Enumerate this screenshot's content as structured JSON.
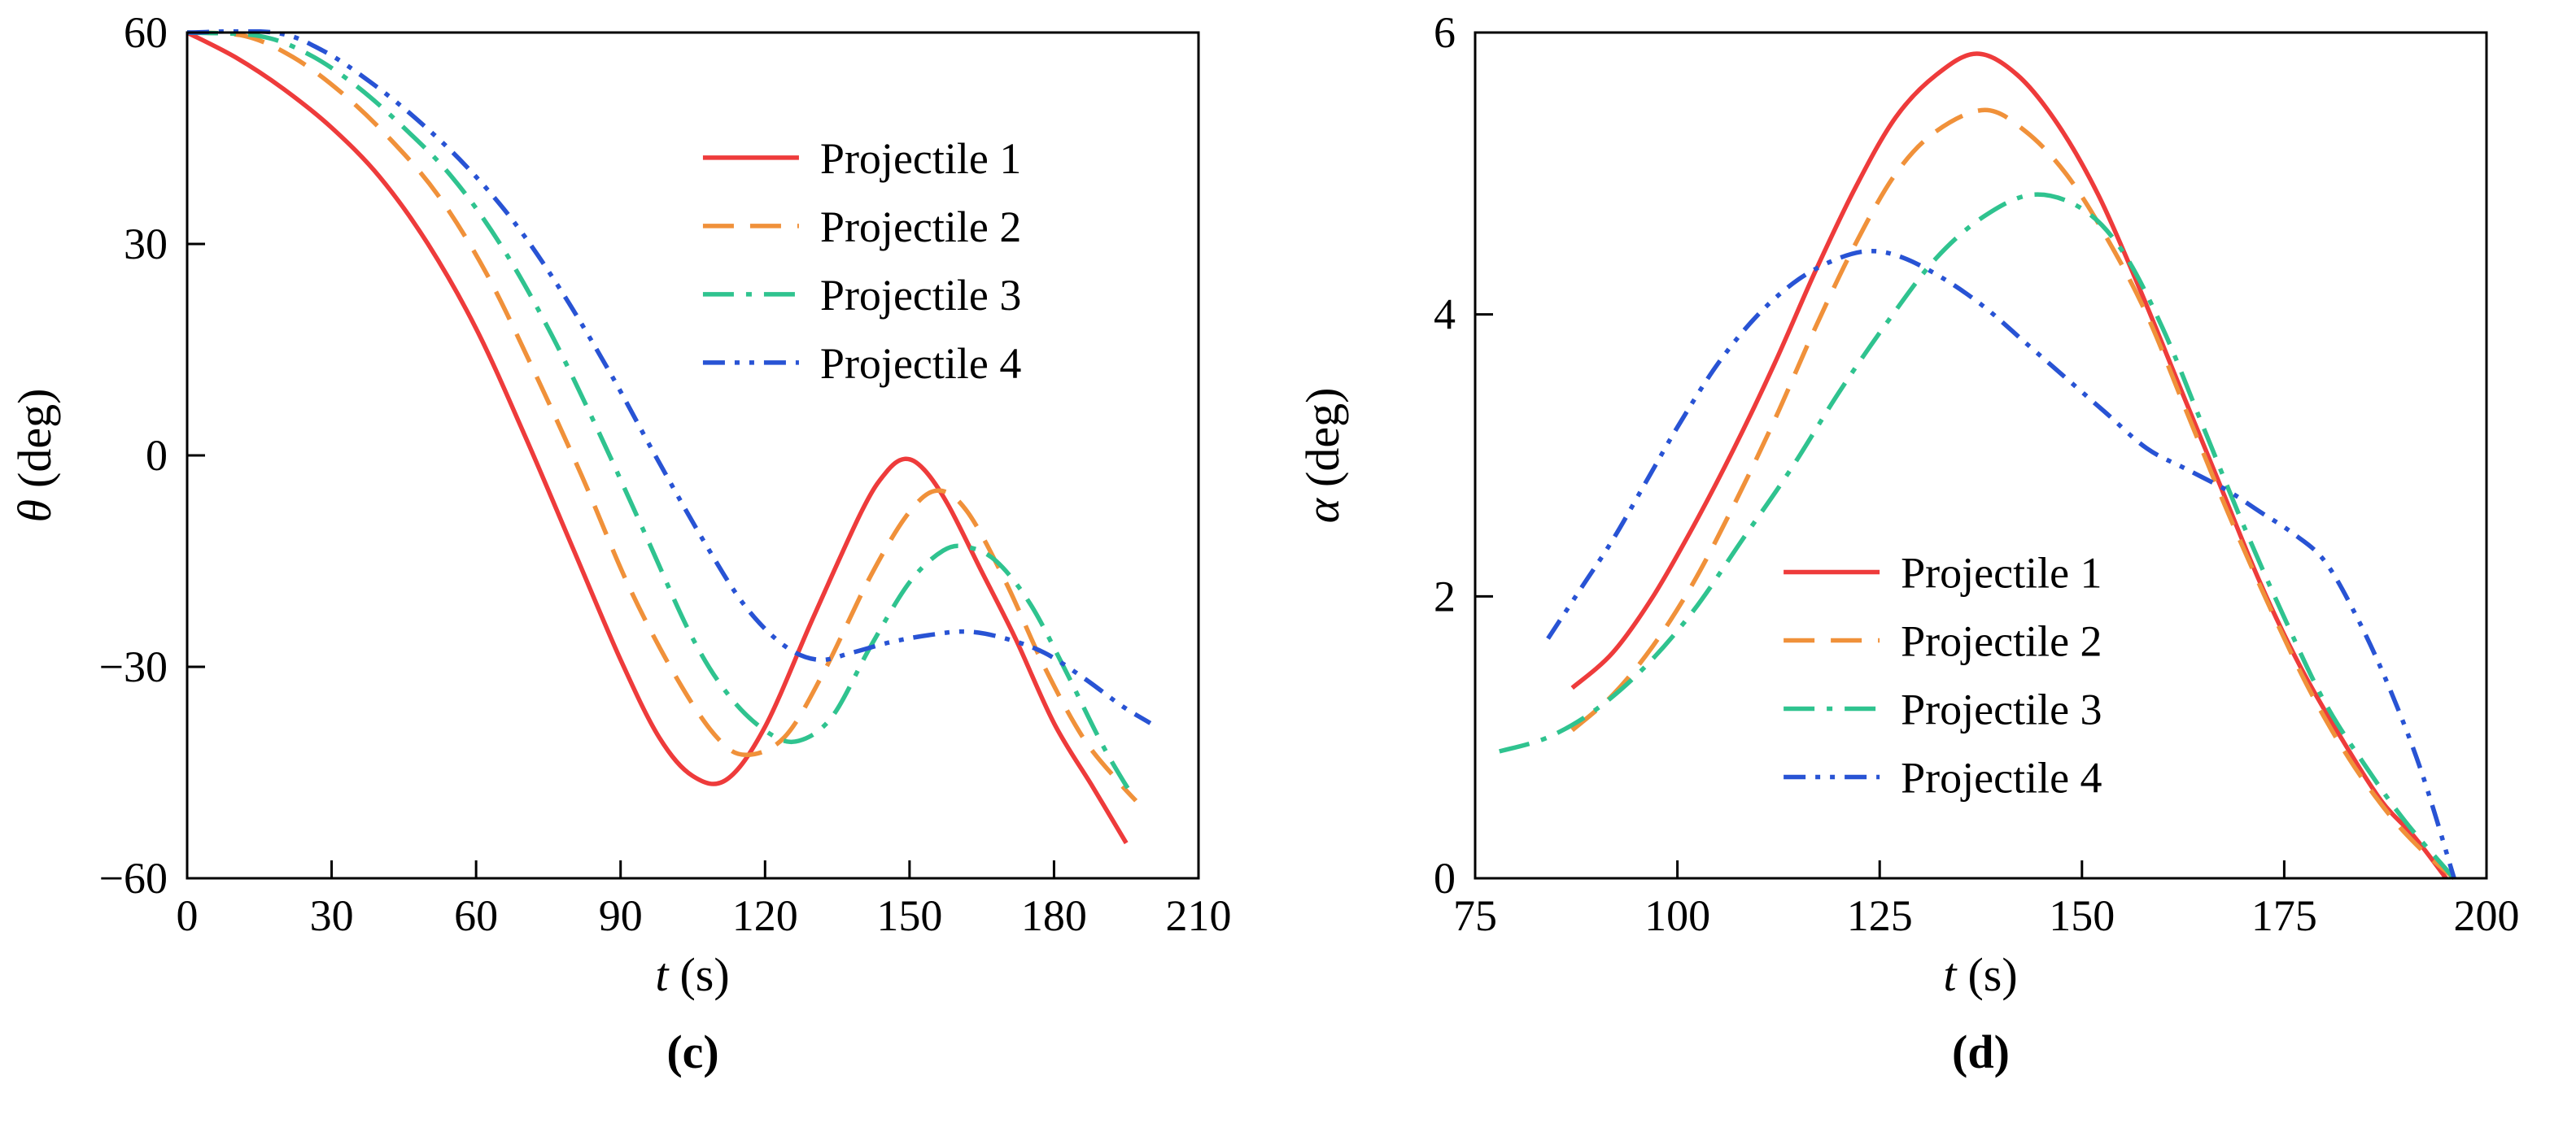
{
  "figure": {
    "background": "#ffffff"
  },
  "chart_data": [
    {
      "type": "line",
      "tag": "(c)",
      "xlabel_symbol": "t",
      "xlabel_unit": "(s)",
      "ylabel_symbol": "θ",
      "ylabel_unit": "(deg)",
      "xlim": [
        0,
        210
      ],
      "ylim": [
        -60,
        60
      ],
      "xticks": [
        0,
        30,
        60,
        90,
        120,
        150,
        180,
        210
      ],
      "yticks": [
        -60,
        -30,
        0,
        30,
        60
      ],
      "grid": false,
      "legend_position": "inside upper center-right",
      "legend_anchor": [
        0.51,
        0.148
      ],
      "series": [
        {
          "name": "Projectile 1",
          "color": "#ee3b3b",
          "style": "solid",
          "points": [
            [
              0,
              60
            ],
            [
              10,
              56.5
            ],
            [
              20,
              52
            ],
            [
              30,
              46.5
            ],
            [
              40,
              39.5
            ],
            [
              50,
              30
            ],
            [
              60,
              18
            ],
            [
              70,
              3
            ],
            [
              80,
              -13
            ],
            [
              90,
              -29
            ],
            [
              98,
              -40
            ],
            [
              105,
              -45.5
            ],
            [
              112,
              -46
            ],
            [
              120,
              -38.5
            ],
            [
              130,
              -23
            ],
            [
              140,
              -8
            ],
            [
              145,
              -2.5
            ],
            [
              149,
              -0.5
            ],
            [
              153,
              -2
            ],
            [
              158,
              -7
            ],
            [
              165,
              -16.5
            ],
            [
              172,
              -26
            ],
            [
              180,
              -38
            ],
            [
              188,
              -47
            ],
            [
              195,
              -55
            ]
          ]
        },
        {
          "name": "Projectile 2",
          "color": "#f0913a",
          "style": "dashed",
          "points": [
            [
              0,
              60
            ],
            [
              12,
              59.5
            ],
            [
              22,
              56.5
            ],
            [
              32,
              51.5
            ],
            [
              42,
              45
            ],
            [
              52,
              37
            ],
            [
              62,
              26
            ],
            [
              72,
              12
            ],
            [
              82,
              -3
            ],
            [
              92,
              -19
            ],
            [
              102,
              -32
            ],
            [
              110,
              -40
            ],
            [
              116,
              -42.5
            ],
            [
              124,
              -40
            ],
            [
              132,
              -31
            ],
            [
              142,
              -17
            ],
            [
              150,
              -8
            ],
            [
              156,
              -5
            ],
            [
              162,
              -8
            ],
            [
              170,
              -18
            ],
            [
              178,
              -30
            ],
            [
              186,
              -40
            ],
            [
              193,
              -46
            ],
            [
              197,
              -49
            ]
          ]
        },
        {
          "name": "Projectile 3",
          "color": "#2fc38f",
          "style": "dashdot",
          "points": [
            [
              0,
              60
            ],
            [
              15,
              59.5
            ],
            [
              25,
              57
            ],
            [
              35,
              52.5
            ],
            [
              45,
              46.5
            ],
            [
              55,
              39.5
            ],
            [
              65,
              30
            ],
            [
              75,
              18
            ],
            [
              85,
              4
            ],
            [
              95,
              -11
            ],
            [
              105,
              -26
            ],
            [
              113,
              -34.5
            ],
            [
              121,
              -39.5
            ],
            [
              127,
              -40.5
            ],
            [
              134,
              -37
            ],
            [
              142,
              -27
            ],
            [
              150,
              -18
            ],
            [
              157,
              -13.5
            ],
            [
              162,
              -13
            ],
            [
              168,
              -15
            ],
            [
              175,
              -21
            ],
            [
              182,
              -30
            ],
            [
              190,
              -41
            ],
            [
              196,
              -48
            ]
          ]
        },
        {
          "name": "Projectile 4",
          "color": "#2853d4",
          "style": "dashdotdot",
          "points": [
            [
              0,
              60
            ],
            [
              18,
              60
            ],
            [
              28,
              57.5
            ],
            [
              38,
              53
            ],
            [
              48,
              47.5
            ],
            [
              58,
              41
            ],
            [
              68,
              33
            ],
            [
              78,
              23
            ],
            [
              88,
              11.5
            ],
            [
              98,
              -1
            ],
            [
              108,
              -13
            ],
            [
              116,
              -21.5
            ],
            [
              124,
              -27
            ],
            [
              131,
              -29
            ],
            [
              138,
              -28
            ],
            [
              146,
              -26.5
            ],
            [
              154,
              -25.5
            ],
            [
              162,
              -25
            ],
            [
              170,
              -26
            ],
            [
              178,
              -28
            ],
            [
              186,
              -31.5
            ],
            [
              194,
              -35.5
            ],
            [
              200,
              -38
            ]
          ]
        }
      ]
    },
    {
      "type": "line",
      "tag": "(d)",
      "xlabel_symbol": "t",
      "xlabel_unit": "(s)",
      "ylabel_symbol": "α",
      "ylabel_unit": "(deg)",
      "xlim": [
        75,
        200
      ],
      "ylim": [
        0,
        6
      ],
      "xticks": [
        75,
        100,
        125,
        150,
        175,
        200
      ],
      "yticks": [
        0,
        2,
        4,
        6
      ],
      "grid": false,
      "legend_position": "inside lower middle-right",
      "legend_anchor": [
        0.305,
        0.638
      ],
      "series": [
        {
          "name": "Projectile 1",
          "color": "#ee3b3b",
          "style": "solid",
          "points": [
            [
              87,
              1.35
            ],
            [
              92,
              1.6
            ],
            [
              97,
              2.0
            ],
            [
              102,
              2.5
            ],
            [
              107,
              3.05
            ],
            [
              112,
              3.65
            ],
            [
              117,
              4.3
            ],
            [
              122,
              4.9
            ],
            [
              127,
              5.4
            ],
            [
              132,
              5.7
            ],
            [
              137,
              5.85
            ],
            [
              142,
              5.7
            ],
            [
              147,
              5.35
            ],
            [
              152,
              4.85
            ],
            [
              157,
              4.2
            ],
            [
              162,
              3.5
            ],
            [
              167,
              2.8
            ],
            [
              172,
              2.1
            ],
            [
              177,
              1.5
            ],
            [
              182,
              1.0
            ],
            [
              187,
              0.55
            ],
            [
              191,
              0.3
            ],
            [
              195,
              0
            ]
          ]
        },
        {
          "name": "Projectile 2",
          "color": "#f0913a",
          "style": "dashed",
          "points": [
            [
              87,
              1.05
            ],
            [
              92,
              1.3
            ],
            [
              97,
              1.65
            ],
            [
              102,
              2.1
            ],
            [
              107,
              2.65
            ],
            [
              112,
              3.25
            ],
            [
              117,
              3.9
            ],
            [
              122,
              4.5
            ],
            [
              127,
              5.0
            ],
            [
              132,
              5.3
            ],
            [
              138,
              5.45
            ],
            [
              143,
              5.3
            ],
            [
              148,
              5.0
            ],
            [
              153,
              4.55
            ],
            [
              158,
              4.0
            ],
            [
              163,
              3.3
            ],
            [
              168,
              2.6
            ],
            [
              173,
              1.95
            ],
            [
              178,
              1.35
            ],
            [
              183,
              0.85
            ],
            [
              188,
              0.45
            ],
            [
              192,
              0.2
            ],
            [
              196,
              0
            ]
          ]
        },
        {
          "name": "Projectile 3",
          "color": "#2fc38f",
          "style": "dashdot",
          "points": [
            [
              78,
              0.9
            ],
            [
              84,
              1.0
            ],
            [
              90,
              1.2
            ],
            [
              96,
              1.5
            ],
            [
              102,
              1.9
            ],
            [
              108,
              2.4
            ],
            [
              114,
              2.9
            ],
            [
              120,
              3.45
            ],
            [
              126,
              3.95
            ],
            [
              132,
              4.4
            ],
            [
              138,
              4.7
            ],
            [
              144,
              4.85
            ],
            [
              150,
              4.75
            ],
            [
              155,
              4.45
            ],
            [
              160,
              3.9
            ],
            [
              165,
              3.2
            ],
            [
              170,
              2.5
            ],
            [
              175,
              1.85
            ],
            [
              180,
              1.25
            ],
            [
              185,
              0.8
            ],
            [
              190,
              0.4
            ],
            [
              196,
              0
            ]
          ]
        },
        {
          "name": "Projectile 4",
          "color": "#2853d4",
          "style": "dashdotdot",
          "points": [
            [
              84,
              1.7
            ],
            [
              88,
              2.05
            ],
            [
              92,
              2.4
            ],
            [
              96,
              2.8
            ],
            [
              100,
              3.2
            ],
            [
              105,
              3.65
            ],
            [
              110,
              4.0
            ],
            [
              115,
              4.25
            ],
            [
              120,
              4.4
            ],
            [
              124,
              4.45
            ],
            [
              128,
              4.4
            ],
            [
              133,
              4.25
            ],
            [
              138,
              4.05
            ],
            [
              143,
              3.8
            ],
            [
              148,
              3.55
            ],
            [
              153,
              3.3
            ],
            [
              158,
              3.05
            ],
            [
              163,
              2.9
            ],
            [
              168,
              2.75
            ],
            [
              172,
              2.6
            ],
            [
              176,
              2.45
            ],
            [
              180,
              2.25
            ],
            [
              184,
              1.85
            ],
            [
              188,
              1.35
            ],
            [
              192,
              0.75
            ],
            [
              196,
              0
            ]
          ]
        }
      ]
    }
  ]
}
